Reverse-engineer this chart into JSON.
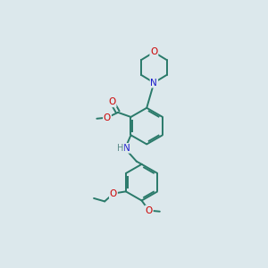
{
  "bg_color": "#dce8ec",
  "bond_color": "#2a7a6a",
  "atom_colors": {
    "O": "#cc0000",
    "N": "#1a1acc",
    "H": "#5a8a88"
  },
  "lw": 1.4,
  "lw_ring": 1.4
}
